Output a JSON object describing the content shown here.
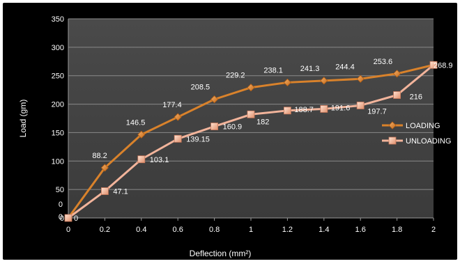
{
  "chart_data": {
    "type": "line",
    "xlabel": "Deflection (mm²)",
    "ylabel": "Load (gm)",
    "x": [
      0,
      0.2,
      0.4,
      0.6,
      0.8,
      1,
      1.2,
      1.4,
      1.6,
      1.8,
      2
    ],
    "x_tick_labels": [
      "0",
      "0.2",
      "0.4",
      "0.6",
      "0.8",
      "1",
      "1.2",
      "1.4",
      "1.6",
      "1.8",
      "2"
    ],
    "y_tick_labels": [
      "0",
      "50",
      "100",
      "150",
      "200",
      "250",
      "300",
      "350"
    ],
    "ylim": [
      0,
      350
    ],
    "grid": true,
    "legend_position": "right",
    "extra_axis_labels": [
      "0",
      "0"
    ],
    "series": [
      {
        "name": "LOADING",
        "marker": "diamond",
        "color": "#d9822b",
        "values": [
          0,
          88.2,
          146.5,
          177.4,
          208.5,
          229.2,
          238.1,
          241.3,
          244.4,
          253.6,
          268.9
        ],
        "data_labels": [
          "",
          "88.2",
          "146.5",
          "177.4",
          "208.5",
          "229.2",
          "238.1",
          "241.3",
          "244.4",
          "253.6",
          ""
        ]
      },
      {
        "name": "UNLOADING",
        "marker": "square",
        "color": "#f2b49b",
        "values": [
          0,
          47.1,
          103.1,
          139.15,
          160.9,
          182,
          188.7,
          191.6,
          197.7,
          216,
          268.9
        ],
        "data_labels": [
          "0",
          "47.1",
          "103.1",
          "139.15",
          "160.9",
          "182",
          "188.7",
          "191.6",
          "197.7",
          "216",
          "268.9"
        ]
      }
    ]
  }
}
